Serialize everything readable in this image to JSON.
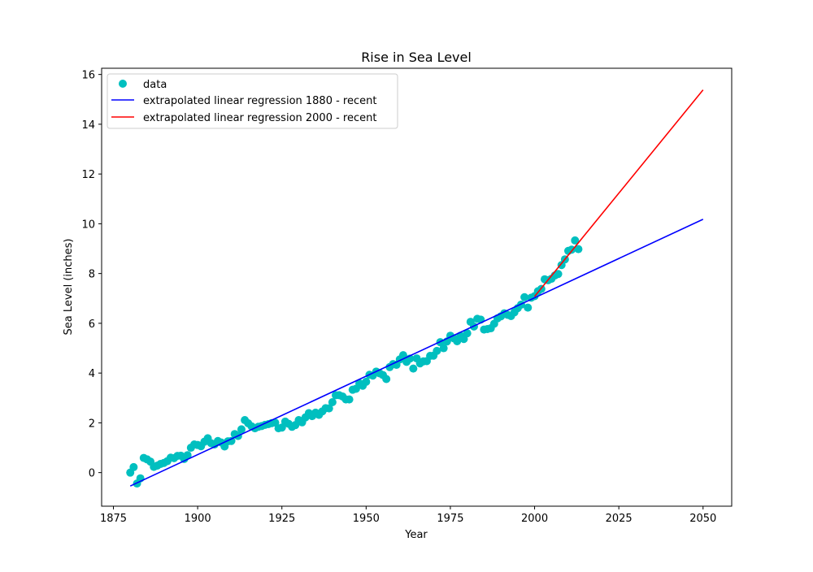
{
  "chart_data": {
    "type": "scatter",
    "title": "Rise in Sea Level",
    "xlabel": "Year",
    "ylabel": "Sea Level (inches)",
    "xlim": [
      1871.5,
      2058.5
    ],
    "ylim": [
      -1.35,
      16.25
    ],
    "xticks": [
      1875,
      1900,
      1925,
      1950,
      1975,
      2000,
      2025,
      2050
    ],
    "yticks": [
      0,
      2,
      4,
      6,
      8,
      10,
      12,
      14,
      16
    ],
    "grid": false,
    "legend_position": "top-left",
    "series": [
      {
        "name": "data",
        "kind": "scatter",
        "color": "#00bfbf",
        "x": [
          1880,
          1881,
          1882,
          1883,
          1884,
          1885,
          1886,
          1887,
          1888,
          1889,
          1890,
          1891,
          1892,
          1893,
          1894,
          1895,
          1896,
          1897,
          1898,
          1899,
          1900,
          1901,
          1902,
          1903,
          1904,
          1905,
          1906,
          1907,
          1908,
          1909,
          1910,
          1911,
          1912,
          1913,
          1914,
          1915,
          1916,
          1917,
          1918,
          1919,
          1920,
          1921,
          1922,
          1923,
          1924,
          1925,
          1926,
          1927,
          1928,
          1929,
          1930,
          1931,
          1932,
          1933,
          1934,
          1935,
          1936,
          1937,
          1938,
          1939,
          1940,
          1941,
          1942,
          1943,
          1944,
          1945,
          1946,
          1947,
          1948,
          1949,
          1950,
          1951,
          1952,
          1953,
          1954,
          1955,
          1956,
          1957,
          1958,
          1959,
          1960,
          1961,
          1962,
          1963,
          1964,
          1965,
          1966,
          1967,
          1968,
          1969,
          1970,
          1971,
          1972,
          1973,
          1974,
          1975,
          1976,
          1977,
          1978,
          1979,
          1980,
          1981,
          1982,
          1983,
          1984,
          1985,
          1986,
          1987,
          1988,
          1989,
          1990,
          1991,
          1992,
          1993,
          1994,
          1995,
          1996,
          1997,
          1998,
          1999,
          2000,
          2001,
          2002,
          2003,
          2004,
          2005,
          2006,
          2007,
          2008,
          2009,
          2010,
          2011,
          2012,
          2013
        ],
        "y": [
          0.0,
          0.22,
          -0.44,
          -0.23,
          0.59,
          0.53,
          0.44,
          0.23,
          0.28,
          0.35,
          0.39,
          0.46,
          0.6,
          0.58,
          0.67,
          0.68,
          0.55,
          0.7,
          1.0,
          1.13,
          1.11,
          1.06,
          1.24,
          1.38,
          1.18,
          1.13,
          1.27,
          1.21,
          1.05,
          1.26,
          1.27,
          1.55,
          1.47,
          1.74,
          2.11,
          1.98,
          1.86,
          1.78,
          1.84,
          1.87,
          1.92,
          1.95,
          1.99,
          2.01,
          1.78,
          1.81,
          2.05,
          1.96,
          1.84,
          1.91,
          2.11,
          2.02,
          2.22,
          2.39,
          2.27,
          2.41,
          2.32,
          2.46,
          2.59,
          2.58,
          2.83,
          3.11,
          3.11,
          3.06,
          2.94,
          2.94,
          3.33,
          3.37,
          3.59,
          3.49,
          3.65,
          3.93,
          3.9,
          4.06,
          3.99,
          3.92,
          3.76,
          4.24,
          4.36,
          4.33,
          4.55,
          4.72,
          4.45,
          4.58,
          4.18,
          4.59,
          4.39,
          4.47,
          4.48,
          4.69,
          4.7,
          4.89,
          5.24,
          5.0,
          5.27,
          5.5,
          5.4,
          5.28,
          5.5,
          5.37,
          5.6,
          6.06,
          5.87,
          6.18,
          6.15,
          5.75,
          5.77,
          5.8,
          5.98,
          6.2,
          6.28,
          6.4,
          6.34,
          6.29,
          6.44,
          6.61,
          6.75,
          7.05,
          6.63,
          7.03,
          7.09,
          7.29,
          7.38,
          7.77,
          7.73,
          7.79,
          7.92,
          7.98,
          8.34,
          8.57,
          8.91,
          8.96,
          9.33,
          8.98
        ]
      },
      {
        "name": "extrapolated linear regression 1880 - recent",
        "kind": "line",
        "color": "#0000ff",
        "x": [
          1880,
          2050
        ],
        "y": [
          -0.54,
          10.18
        ]
      },
      {
        "name": "extrapolated linear regression 2000 - recent",
        "kind": "line",
        "color": "#ff0000",
        "x": [
          2000,
          2050
        ],
        "y": [
          7.08,
          15.38
        ]
      }
    ]
  }
}
